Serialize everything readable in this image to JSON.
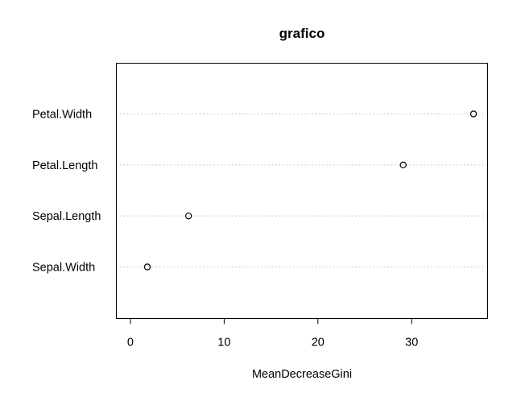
{
  "chart_data": {
    "type": "scatter",
    "title": "grafico",
    "xlabel": "MeanDecreaseGini",
    "ylabel": "",
    "categories": [
      "Sepal.Width",
      "Sepal.Length",
      "Petal.Length",
      "Petal.Width"
    ],
    "values": [
      1.8,
      6.2,
      29.1,
      36.6
    ],
    "xlim": [
      -1.5,
      38.1
    ],
    "xticks": [
      0,
      10,
      20,
      30
    ],
    "grid": "dotted horizontal lines per category",
    "legend": "none",
    "marker": "open circle",
    "colors": {
      "marker": "#000000",
      "grid": "#bebebe",
      "frame": "#000000"
    }
  }
}
